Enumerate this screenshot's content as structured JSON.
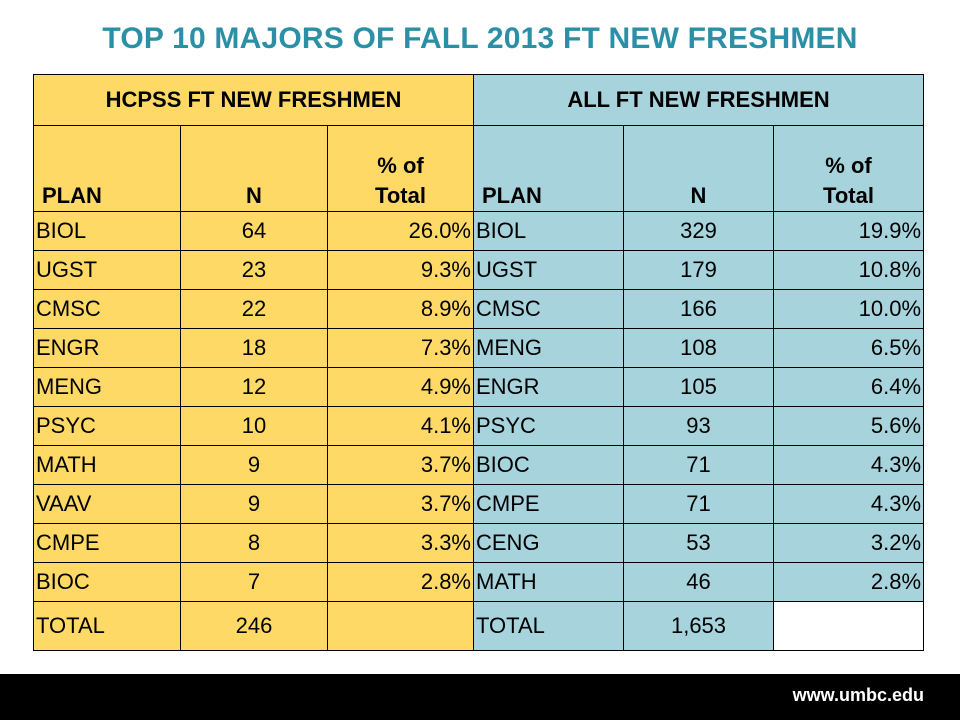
{
  "title": "TOP 10 MAJORS OF FALL 2013 FT NEW FRESHMEN",
  "colors": {
    "title": "#2b8fa6",
    "hcpss_fill": "#fed966",
    "all_fill": "#a6d3dc",
    "footer_bg": "#000000"
  },
  "table": {
    "groups": {
      "hcpss": "HCPSS FT NEW FRESHMEN",
      "all": "ALL FT NEW FRESHMEN"
    },
    "columns": {
      "plan": "PLAN",
      "n": "N",
      "pct_line1": "% of",
      "pct_line2": "Total"
    },
    "rows": [
      {
        "h_plan": "BIOL",
        "h_n": "64",
        "h_pct": "26.0%",
        "a_plan": "BIOL",
        "a_n": "329",
        "a_pct": "19.9%"
      },
      {
        "h_plan": "UGST",
        "h_n": "23",
        "h_pct": "9.3%",
        "a_plan": "UGST",
        "a_n": "179",
        "a_pct": "10.8%"
      },
      {
        "h_plan": "CMSC",
        "h_n": "22",
        "h_pct": "8.9%",
        "a_plan": "CMSC",
        "a_n": "166",
        "a_pct": "10.0%"
      },
      {
        "h_plan": "ENGR",
        "h_n": "18",
        "h_pct": "7.3%",
        "a_plan": "MENG",
        "a_n": "108",
        "a_pct": "6.5%"
      },
      {
        "h_plan": "MENG",
        "h_n": "12",
        "h_pct": "4.9%",
        "a_plan": "ENGR",
        "a_n": "105",
        "a_pct": "6.4%"
      },
      {
        "h_plan": "PSYC",
        "h_n": "10",
        "h_pct": "4.1%",
        "a_plan": "PSYC",
        "a_n": "93",
        "a_pct": "5.6%"
      },
      {
        "h_plan": "MATH",
        "h_n": "9",
        "h_pct": "3.7%",
        "a_plan": "BIOC",
        "a_n": "71",
        "a_pct": "4.3%"
      },
      {
        "h_plan": "VAAV",
        "h_n": "9",
        "h_pct": "3.7%",
        "a_plan": "CMPE",
        "a_n": "71",
        "a_pct": "4.3%"
      },
      {
        "h_plan": "CMPE",
        "h_n": "8",
        "h_pct": "3.3%",
        "a_plan": "CENG",
        "a_n": "53",
        "a_pct": "3.2%"
      },
      {
        "h_plan": "BIOC",
        "h_n": "7",
        "h_pct": "2.8%",
        "a_plan": "MATH",
        "a_n": "46",
        "a_pct": "2.8%"
      }
    ],
    "total": {
      "h_label": "TOTAL",
      "h_n": "246",
      "a_label": "TOTAL",
      "a_n": "1,653"
    }
  },
  "footer": {
    "url": "www.umbc.edu"
  }
}
